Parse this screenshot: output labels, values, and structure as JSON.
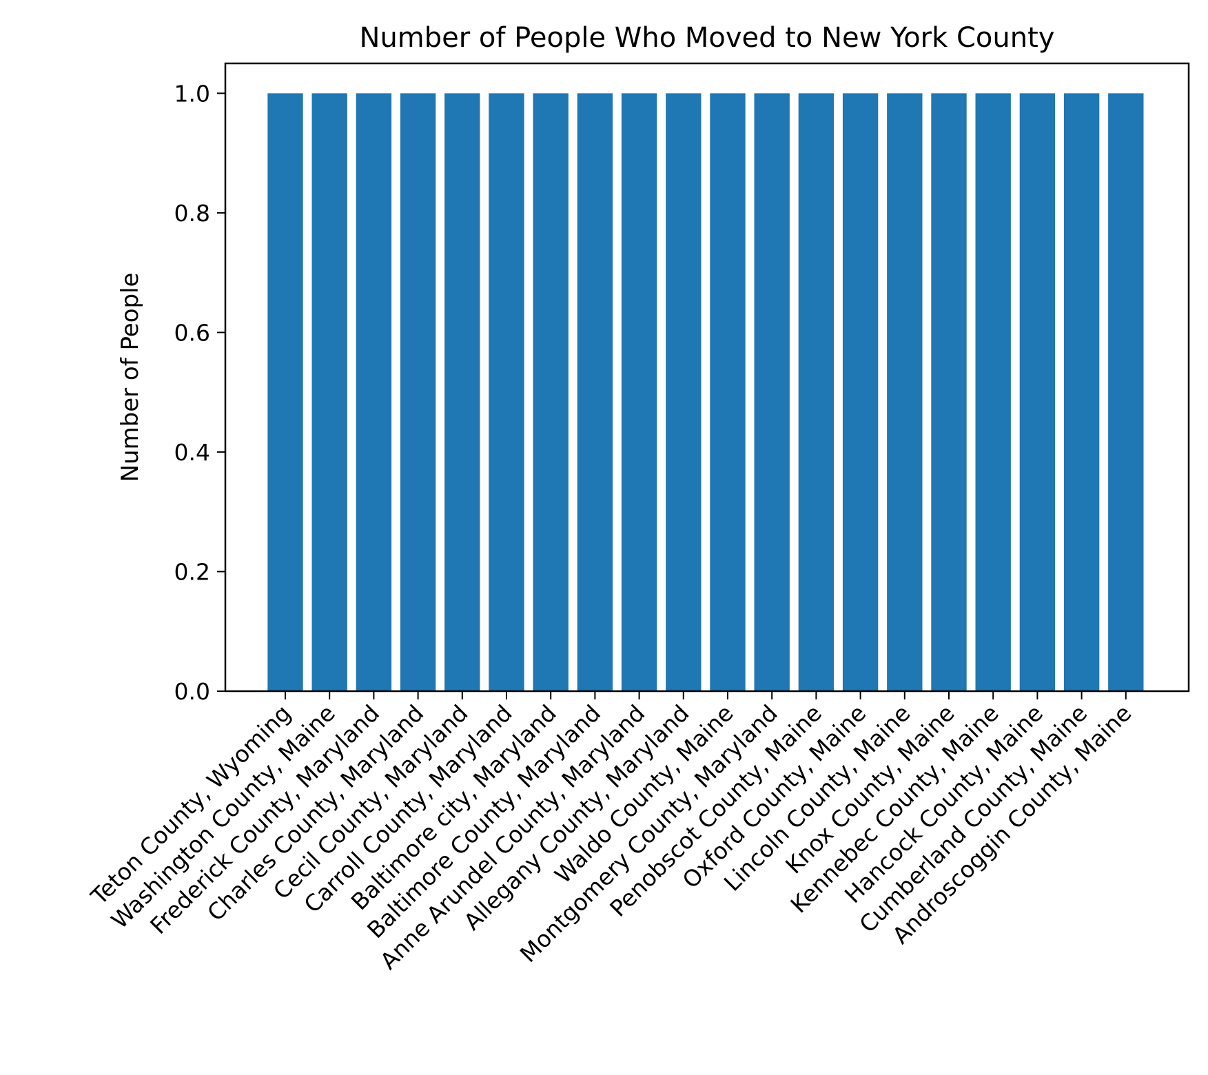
{
  "chart_data": {
    "type": "bar",
    "title": "Number of People Who Moved to New York County",
    "xlabel": "",
    "ylabel": "Number of People",
    "categories": [
      "Teton County, Wyoming",
      "Washington County, Maine",
      "Frederick County, Maryland",
      "Charles County, Maryland",
      "Cecil County, Maryland",
      "Carroll County, Maryland",
      "Baltimore city, Maryland",
      "Baltimore County, Maryland",
      "Anne Arundel County, Maryland",
      "Allegany County, Maryland",
      "Waldo County, Maine",
      "Montgomery County, Maryland",
      "Penobscot County, Maine",
      "Oxford County, Maine",
      "Lincoln County, Maine",
      "Knox County, Maine",
      "Kennebec County, Maine",
      "Hancock County, Maine",
      "Cumberland County, Maine",
      "Androscoggin County, Maine"
    ],
    "values": [
      1,
      1,
      1,
      1,
      1,
      1,
      1,
      1,
      1,
      1,
      1,
      1,
      1,
      1,
      1,
      1,
      1,
      1,
      1,
      1
    ],
    "ylim": [
      0,
      1.05
    ],
    "yticks": [
      "0.0",
      "0.2",
      "0.4",
      "0.6",
      "0.8",
      "1.0"
    ],
    "bar_color": "#1f77b4",
    "grid": false,
    "legend": "none"
  }
}
